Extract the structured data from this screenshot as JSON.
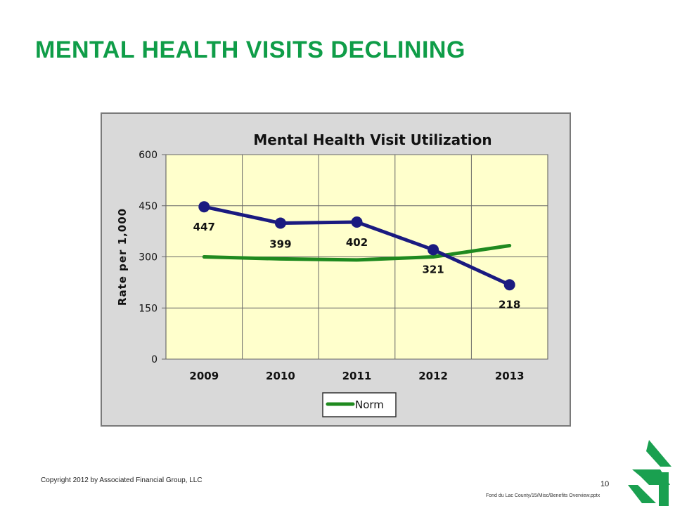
{
  "slide": {
    "title": "MENTAL HEALTH VISITS DECLINING",
    "copyright": "Copyright 2012 by Associated Financial Group, LLC",
    "page_number": "10",
    "file_path": "Fond du Lac County/15/Misc/Benefits Overview.pptx"
  },
  "colors": {
    "title": "#0f9d48",
    "plot_background": "#ffffcc",
    "chart_background": "#d9d9d9",
    "series_visits": "#1a1a80",
    "series_norm": "#1f8a1f",
    "logo": "#1aa050"
  },
  "logo": {
    "icon": "tree-logo-icon"
  },
  "chart_data": {
    "type": "line",
    "title": "Mental Health Visit Utilization",
    "xlabel": "",
    "ylabel": "Rate per 1,000",
    "categories": [
      "2009",
      "2010",
      "2011",
      "2012",
      "2013"
    ],
    "yticks": [
      "0",
      "150",
      "300",
      "450",
      "600"
    ],
    "ylim": [
      0,
      600
    ],
    "grid": true,
    "legend_position": "bottom",
    "series": [
      {
        "values": [
          447,
          399,
          402,
          321,
          218
        ],
        "labels": [
          "447",
          "399",
          "402",
          "321",
          "218"
        ],
        "markers": true
      },
      {
        "name": "Norm",
        "values": [
          300,
          294,
          291,
          300,
          333
        ],
        "markers": false
      }
    ]
  }
}
